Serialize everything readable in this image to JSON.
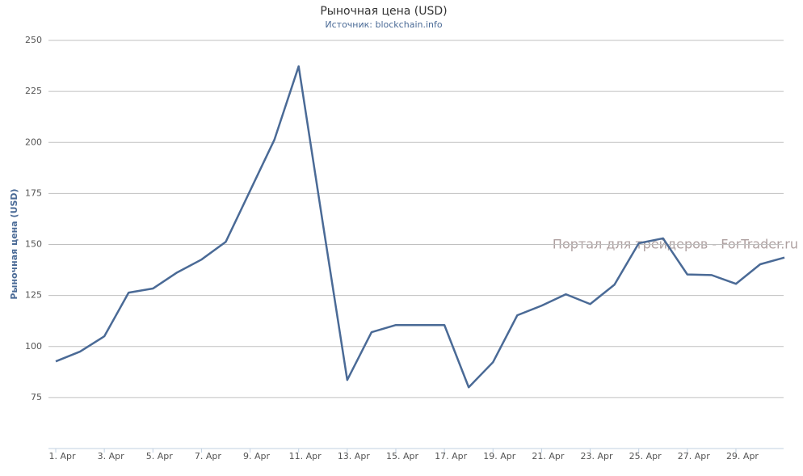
{
  "chart_data": {
    "type": "line",
    "title": "Рыночная цена (USD)",
    "subtitle": "Источник: blockchain.info",
    "y_label": "Рыночная цена (USD)",
    "watermark": "Портал для трейдеров - ForTrader.ru",
    "categories": [
      "1. Apr",
      null,
      "3. Apr",
      null,
      "5. Apr",
      null,
      "7. Apr",
      null,
      "9. Apr",
      null,
      "11. Apr",
      null,
      "13. Apr",
      null,
      "15. Apr",
      null,
      "17. Apr",
      null,
      "19. Apr",
      null,
      "21. Apr",
      null,
      "23. Apr",
      null,
      "25. Apr",
      null,
      "27. Apr",
      null,
      "29. Apr",
      null,
      null
    ],
    "series": [
      {
        "name": "Рыночная цена",
        "color": "#4a6a96",
        "values": [
          92.7,
          97.5,
          105,
          126.4,
          128.4,
          136.3,
          142.6,
          151.3,
          176.3,
          201.3,
          237.3,
          160,
          83.6,
          107,
          110.5,
          110.5,
          110.5,
          80,
          92.3,
          115.3,
          120,
          125.6,
          120.8,
          130.3,
          150.6,
          153,
          135.3,
          135,
          130.7,
          140.3,
          143.6
        ]
      }
    ],
    "ylim": [
      50,
      250
    ],
    "yticks": [
      75,
      100,
      125,
      150,
      175,
      200,
      225,
      250
    ],
    "grid": true
  }
}
